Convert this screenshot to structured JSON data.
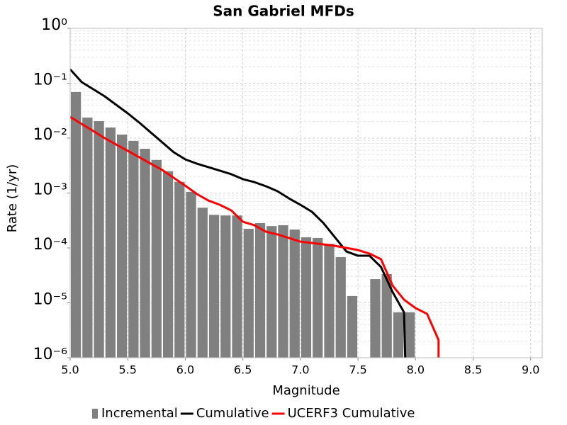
{
  "chart_data": {
    "type": "mfd",
    "title": "San Gabriel MFDs",
    "x_label": "Magnitude",
    "y_label": "Rate (1/yr)",
    "xlim": [
      5.0,
      9.1
    ],
    "xticks": [
      {
        "value": 5,
        "label": "5.0"
      },
      {
        "value": 5.5,
        "label": "5.5"
      },
      {
        "value": 6,
        "label": "6.0"
      },
      {
        "value": 6.5,
        "label": "6.5"
      },
      {
        "value": 7,
        "label": "7.0"
      },
      {
        "value": 7.5,
        "label": "7.5"
      },
      {
        "value": 8,
        "label": "8.0"
      },
      {
        "value": 8.5,
        "label": "8.5"
      },
      {
        "value": 9,
        "label": "9.0"
      }
    ],
    "ylim": [
      1e-06,
      1
    ],
    "yticks": [
      {
        "value": 1e-06,
        "label": "10⁻⁶"
      },
      {
        "value": 1e-05,
        "label": "10⁻⁵"
      },
      {
        "value": 0.0001,
        "label": "10⁻⁴"
      },
      {
        "value": 0.001,
        "label": "10⁻³"
      },
      {
        "value": 0.01,
        "label": "10⁻²"
      },
      {
        "value": 0.1,
        "label": "10⁻¹"
      },
      {
        "value": 1,
        "label": "10⁰"
      }
    ],
    "log_y": true,
    "grid": true,
    "minor_grid": true,
    "legend": "bottom",
    "series": [
      {
        "name": "Incremental",
        "type": "bar",
        "color": "#808080",
        "x": [
          5.05,
          5.15,
          5.25,
          5.35,
          5.45,
          5.55,
          5.65,
          5.75,
          5.85,
          5.95,
          6.05,
          6.15,
          6.25,
          6.35,
          6.45,
          6.55,
          6.65,
          6.75,
          6.85,
          6.95,
          7.05,
          7.15,
          7.25,
          7.35,
          7.45,
          7.55,
          7.65,
          7.75,
          7.85,
          7.95
        ],
        "values": [
          0.069,
          0.0237,
          0.0204,
          0.0156,
          0.0116,
          0.0089,
          0.0064,
          0.004,
          0.0025,
          0.0016,
          0.00105,
          0.00054,
          0.0004,
          0.00039,
          0.00039,
          0.000223,
          0.000283,
          0.00025,
          0.000259,
          0.000216,
          0.000156,
          0.000152,
          0.000119,
          6.79e-05,
          1.33e-05,
          null,
          2.7e-05,
          3.33e-05,
          6.7e-06,
          6.7e-06
        ]
      },
      {
        "name": "Cumulative",
        "type": "line",
        "color": "#000000",
        "x": [
          5.0,
          5.1,
          5.2,
          5.3,
          5.4,
          5.5,
          5.6,
          5.7,
          5.8,
          5.9,
          6.0,
          6.1,
          6.2,
          6.3,
          6.4,
          6.5,
          6.6,
          6.7,
          6.8,
          6.9,
          7.0,
          7.1,
          7.2,
          7.3,
          7.4,
          7.5,
          7.6,
          7.7,
          7.8,
          7.9,
          7.91
        ],
        "values": [
          0.179,
          0.105,
          0.078,
          0.0577,
          0.0404,
          0.0283,
          0.0192,
          0.0127,
          0.00837,
          0.00552,
          0.0041,
          0.00343,
          0.00296,
          0.00255,
          0.0022,
          0.00179,
          0.00158,
          0.00133,
          0.00108,
          0.0008,
          0.00061,
          0.000455,
          0.000283,
          0.000156,
          8.6e-05,
          7.2e-05,
          7.2e-05,
          4.49e-05,
          1.58e-05,
          6.7e-06,
          1e-06
        ]
      },
      {
        "name": "UCERF3 Cumulative",
        "type": "line",
        "color": "#ff0000",
        "x": [
          5.0,
          5.1,
          5.2,
          5.3,
          5.4,
          5.5,
          5.6,
          5.7,
          5.8,
          5.9,
          6.0,
          6.1,
          6.2,
          6.3,
          6.4,
          6.5,
          6.6,
          6.7,
          6.8,
          6.9,
          7.0,
          7.1,
          7.2,
          7.3,
          7.4,
          7.5,
          7.6,
          7.7,
          7.8,
          7.9,
          8.0,
          8.1,
          8.2,
          8.2
        ],
        "values": [
          0.0244,
          0.0181,
          0.0135,
          0.01,
          0.00765,
          0.00586,
          0.00449,
          0.00343,
          0.00263,
          0.00189,
          0.00136,
          0.00096,
          0.00073,
          0.00061,
          0.00048,
          0.0003,
          0.000259,
          0.000198,
          0.000176,
          0.000152,
          0.00013,
          0.000123,
          0.000116,
          0.000109,
          0.0001,
          9.14e-05,
          7.88e-05,
          6.22e-05,
          2.07e-05,
          1.14e-05,
          8e-06,
          6.3e-06,
          2.1e-06,
          1e-06
        ]
      }
    ]
  }
}
